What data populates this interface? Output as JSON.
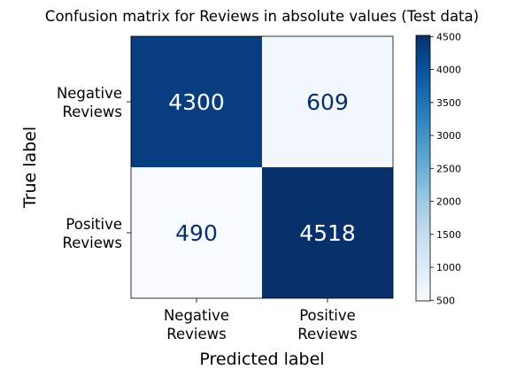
{
  "chart_data": {
    "type": "heatmap",
    "title": "Confusion matrix for Reviews in absolute values (Test data)",
    "xlabel": "Predicted label",
    "ylabel": "True label",
    "x_categories": [
      [
        "Negative",
        "Reviews"
      ],
      [
        "Positive",
        "Reviews"
      ]
    ],
    "y_categories": [
      [
        "Negative",
        "Reviews"
      ],
      [
        "Positive",
        "Reviews"
      ]
    ],
    "values": [
      [
        4300,
        609
      ],
      [
        490,
        4518
      ]
    ],
    "colorbar": {
      "range": [
        490,
        4518
      ],
      "ticks": [
        "500",
        "1000",
        "1500",
        "2000",
        "2500",
        "3000",
        "3500",
        "4000",
        "4500"
      ],
      "colormap": "Blues"
    },
    "colors": {
      "low": "#f7fbff",
      "high": "#08306b",
      "dark_text": "#08306b",
      "light_text": "#ffffff"
    }
  }
}
